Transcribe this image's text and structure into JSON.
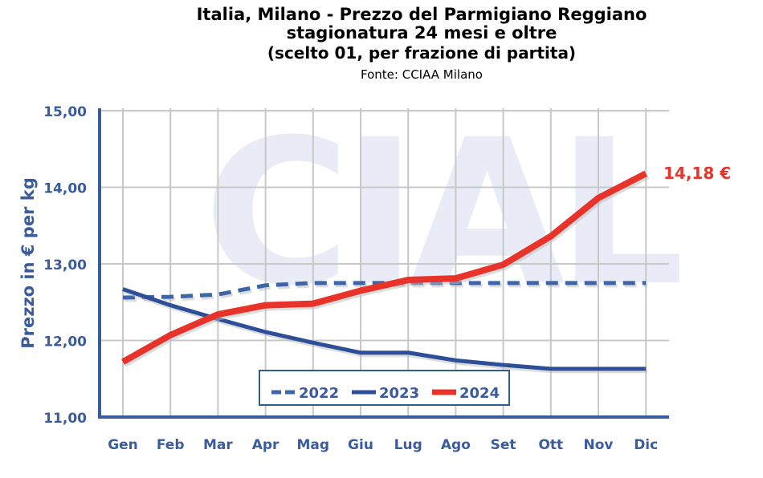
{
  "chart_data": {
    "type": "line",
    "title": [
      "Italia, Milano - Prezzo del Parmigiano Reggiano",
      "stagionatura 24 mesi e oltre",
      "(scelto 01, per frazione di partita)"
    ],
    "subtitle": "Fonte: CCIAA Milano",
    "xlabel": "",
    "ylabel": "Prezzo in € per kg",
    "ylim": [
      11,
      15
    ],
    "yticks": [
      "11,00",
      "12,00",
      "13,00",
      "14,00",
      "15,00"
    ],
    "categories": [
      "Gen",
      "Feb",
      "Mar",
      "Apr",
      "Mag",
      "Giu",
      "Lug",
      "Ago",
      "Set",
      "Ott",
      "Nov",
      "Dic"
    ],
    "grid": true,
    "legend_position": "bottom-center",
    "watermark": "CIAL",
    "series": [
      {
        "name": "2022",
        "style": "dashed",
        "color": "#3d66a8",
        "values": [
          12.56,
          12.57,
          12.6,
          12.72,
          12.75,
          12.75,
          12.75,
          12.75,
          12.75,
          12.75,
          12.75,
          12.75
        ]
      },
      {
        "name": "2023",
        "style": "solid",
        "color": "#2c4f97",
        "values": [
          12.67,
          12.46,
          12.28,
          12.11,
          11.97,
          11.84,
          11.84,
          11.74,
          11.68,
          11.63,
          11.63,
          11.63
        ]
      },
      {
        "name": "2024",
        "style": "solid",
        "color": "#e8332a",
        "values": [
          11.72,
          12.07,
          12.34,
          12.46,
          12.48,
          12.65,
          12.79,
          12.81,
          12.99,
          13.36,
          13.86,
          14.18
        ]
      }
    ],
    "annotation": "14,18 €"
  }
}
